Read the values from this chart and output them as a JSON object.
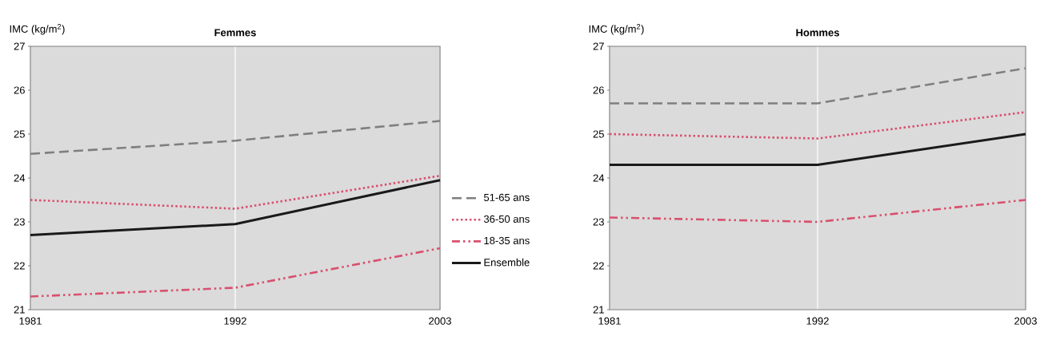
{
  "chart_data": [
    {
      "type": "line",
      "title": "Femmes",
      "ylabel": "IMC (kg/m$^{2}$)",
      "x": [
        1981,
        1992,
        2003
      ],
      "xlim": [
        1981,
        2003
      ],
      "xticks": [
        1981,
        1992,
        2003
      ],
      "ylim": [
        21,
        27
      ],
      "yticks": [
        21,
        22,
        23,
        24,
        25,
        26,
        27
      ],
      "grid": "x",
      "legend": "right",
      "marker": "none",
      "series": [
        {
          "name": "51-65 ans",
          "color": "#7f7f7f",
          "line_style": "dashed",
          "values": [
            24.55,
            24.85,
            25.3
          ]
        },
        {
          "name": "36-50 ans",
          "color": "#d9506e",
          "line_style": "dotted",
          "values": [
            23.5,
            23.3,
            24.05
          ]
        },
        {
          "name": "18-35 ans",
          "color": "#d9506e",
          "line_style": "dashdot",
          "values": [
            21.3,
            21.5,
            22.4
          ]
        },
        {
          "name": "Ensemble",
          "color": "#1a1a1a",
          "line_style": "solid",
          "values": [
            22.7,
            22.95,
            23.95
          ]
        }
      ]
    },
    {
      "type": "line",
      "title": "Hommes",
      "ylabel": "IMC (kg/m$^{2}$)",
      "x": [
        1981,
        1992,
        2003
      ],
      "xlim": [
        1981,
        2003
      ],
      "xticks": [
        1981,
        1992,
        2003
      ],
      "ylim": [
        21,
        27
      ],
      "yticks": [
        21,
        22,
        23,
        24,
        25,
        26,
        27
      ],
      "grid": "x",
      "legend": false,
      "marker": "none",
      "series": [
        {
          "color": "#7f7f7f",
          "line_style": "dashed",
          "values": [
            25.7,
            25.7,
            26.5
          ]
        },
        {
          "color": "#d9506e",
          "line_style": "dotted",
          "values": [
            25.0,
            24.9,
            25.5
          ]
        },
        {
          "color": "#d9506e",
          "line_style": "dashdot",
          "values": [
            23.1,
            23.0,
            23.5
          ]
        },
        {
          "color": "#1a1a1a",
          "line_style": "solid",
          "values": [
            24.3,
            24.3,
            25.0
          ]
        }
      ]
    }
  ]
}
